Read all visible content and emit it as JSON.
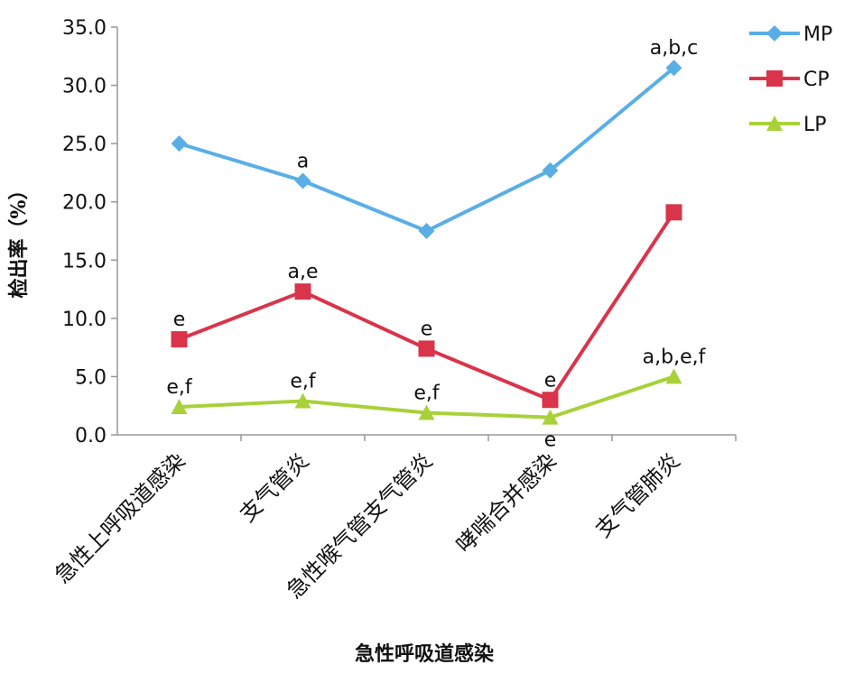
{
  "chart_data": {
    "type": "line",
    "x_label": "急性呼吸道感染",
    "y_label": "检出率（%）",
    "categories": [
      "急性上呼吸道感染",
      "支气管炎",
      "急性喉气管支气管炎",
      "哮喘合并感染",
      "支气管肺炎"
    ],
    "ylim": [
      0,
      35
    ],
    "yticks": [
      {
        "value": 0,
        "label": "0.0"
      },
      {
        "value": 5,
        "label": "5.0"
      },
      {
        "value": 10,
        "label": "10.0"
      },
      {
        "value": 15,
        "label": "15.0"
      },
      {
        "value": 20,
        "label": "20.0"
      },
      {
        "value": 25,
        "label": "25.0"
      },
      {
        "value": 30,
        "label": "30.0"
      },
      {
        "value": 35,
        "label": "35.0"
      }
    ],
    "grid": false,
    "legend": "right",
    "series": [
      {
        "name": "MP",
        "color": "#5aaee6",
        "marker": "diamond",
        "values": [
          25.0,
          21.8,
          17.5,
          22.7,
          31.5
        ],
        "labels": [
          null,
          "a",
          null,
          null,
          "a,b,c"
        ]
      },
      {
        "name": "CP",
        "color": "#d9344a",
        "marker": "square",
        "values": [
          8.2,
          12.3,
          7.4,
          3.0,
          19.1
        ],
        "labels": [
          "e",
          "a,e",
          "e",
          "e",
          null
        ]
      },
      {
        "name": "LP",
        "color": "#a8d13a",
        "marker": "triangle",
        "values": [
          2.4,
          2.9,
          1.9,
          1.5,
          5.0
        ],
        "labels": [
          "e,f",
          "e,f",
          "e,f",
          "e",
          "a,b,e,f"
        ]
      }
    ]
  }
}
